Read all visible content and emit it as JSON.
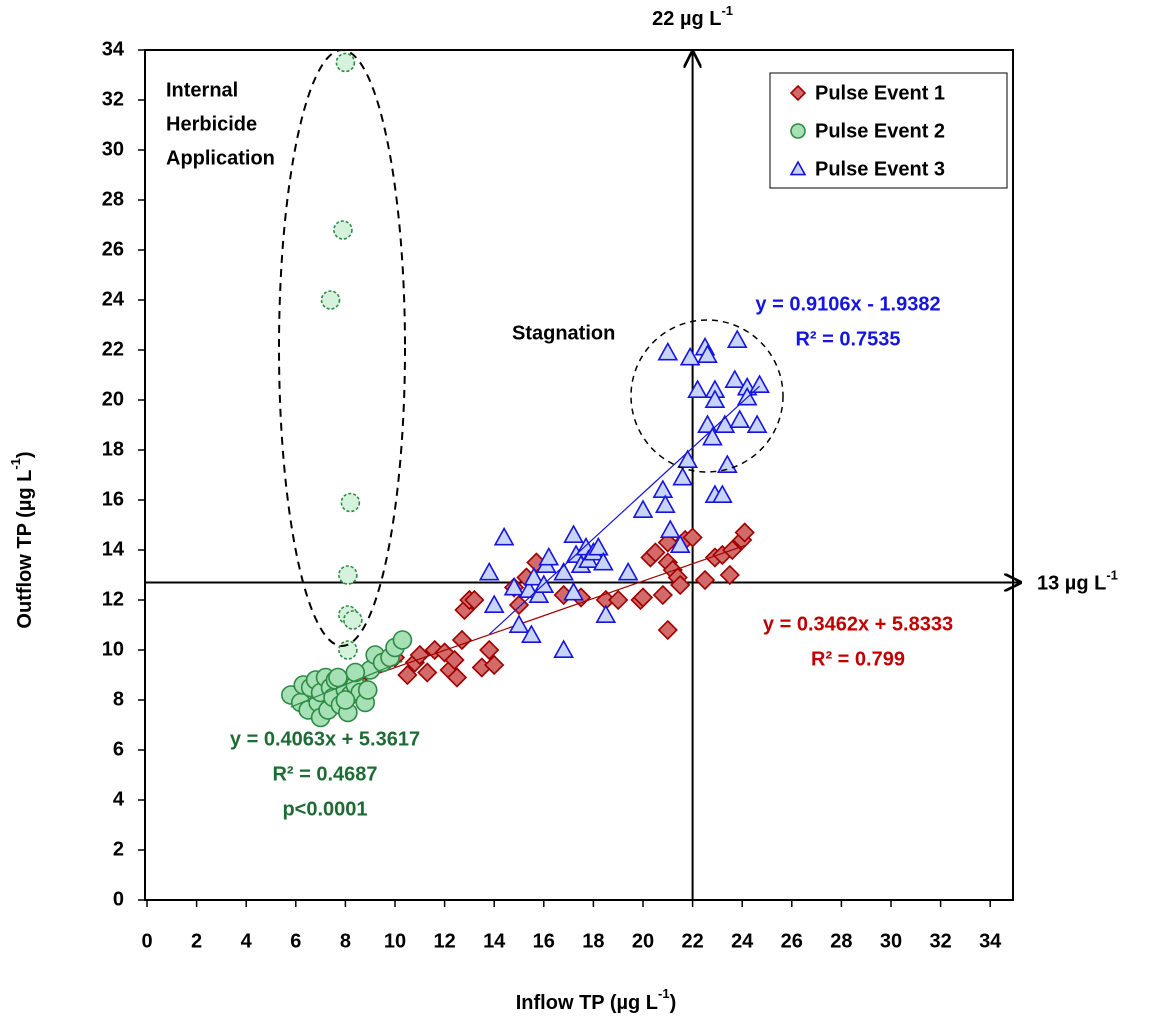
{
  "chart_data": {
    "type": "scatter",
    "xlabel": {
      "text": "Inflow TP (µg L",
      "sup": "-1",
      "end": ")"
    },
    "ylabel": {
      "text": "Outflow TP (µg L",
      "sup": "-1",
      "end": ")"
    },
    "xlim": [
      0,
      35
    ],
    "ylim": [
      0,
      34
    ],
    "xticks": [
      0,
      2,
      4,
      6,
      8,
      10,
      12,
      14,
      16,
      18,
      20,
      22,
      24,
      26,
      28,
      30,
      32,
      34
    ],
    "yticks": [
      0,
      2,
      4,
      6,
      8,
      10,
      12,
      14,
      16,
      18,
      20,
      22,
      24,
      26,
      28,
      30,
      32,
      34
    ],
    "legend": "upper right",
    "series": [
      {
        "name": "Pulse Event 1",
        "marker": "diamond",
        "color": "#d26a6a",
        "edge": "#a00000",
        "x": [
          8.5,
          9,
          9.5,
          10,
          10.5,
          10.8,
          11,
          11.3,
          11.6,
          12,
          12.2,
          12.4,
          12.5,
          12.7,
          12.8,
          13,
          13.2,
          13.5,
          13.8,
          14,
          14.8,
          15,
          15.3,
          15.7,
          16.8,
          17.5,
          18.5,
          19,
          19.9,
          20,
          20.3,
          20.5,
          20.8,
          21,
          21,
          21.2,
          21.4,
          21.5,
          21.7,
          22,
          22.5,
          22.9,
          23.2,
          23.5,
          23.6,
          24,
          24.1,
          21
        ],
        "values": [
          8.8,
          9.3,
          9.6,
          9.7,
          9.0,
          9.5,
          9.8,
          9.1,
          10.0,
          9.9,
          9.2,
          9.6,
          8.9,
          10.4,
          11.6,
          12,
          12,
          9.3,
          10,
          9.4,
          12.5,
          11.8,
          12.9,
          13.5,
          12.2,
          12.1,
          12,
          12,
          12,
          12.1,
          13.7,
          13.9,
          12.2,
          10.8,
          13.5,
          13.2,
          12.9,
          12.6,
          14.4,
          14.5,
          12.8,
          13.7,
          13.8,
          13,
          14,
          14.4,
          14.7,
          14.3
        ],
        "trend": {
          "slope": 0.3462,
          "intercept": 5.8333,
          "equation": "y = 0.3462x + 5.8333",
          "r2": "R² = 0.799"
        }
      },
      {
        "name": "Pulse Event 2",
        "marker": "circle",
        "color": "#a6e0b5",
        "edge": "#2e8b45",
        "x": [
          5.8,
          6.2,
          6.3,
          6.5,
          6.6,
          6.8,
          6.9,
          7,
          7,
          7.2,
          7.3,
          7.4,
          7.5,
          7.6,
          7.8,
          8,
          8.1,
          8.2,
          8.4,
          8.6,
          8.8,
          8.9,
          9,
          9.2,
          9.5,
          9.8,
          10,
          10.3,
          8.4,
          7.7,
          8.0
        ],
        "values": [
          8.2,
          7.9,
          8.6,
          7.6,
          8.5,
          8.8,
          7.9,
          7.3,
          8.3,
          8.9,
          7.6,
          8.5,
          8.1,
          8.8,
          7.8,
          8.4,
          7.5,
          8.2,
          8.6,
          8.3,
          7.9,
          8.4,
          9.2,
          9.8,
          9.5,
          9.7,
          10.1,
          10.4,
          9.1,
          8.9,
          8.0
        ],
        "trend": {
          "slope": 0.4063,
          "intercept": 5.3617,
          "equation": "y = 0.4063x + 5.3617",
          "r2": "R² = 0.4687",
          "p": "p<0.0001"
        }
      },
      {
        "name": "Pulse Event 3",
        "marker": "triangle",
        "color": "#c8d4f8",
        "edge": "#1515e0",
        "x": [
          13.8,
          14,
          14.4,
          14.8,
          15,
          15.4,
          15.5,
          15.6,
          15.8,
          16,
          16.1,
          16.2,
          16.8,
          16.8,
          17.2,
          17.2,
          17.3,
          17.5,
          17.7,
          17.8,
          18,
          18.2,
          18.4,
          18.5,
          19.4,
          20,
          20.8,
          20.9,
          21.1,
          21.5,
          21.6,
          21.8,
          21.9,
          21,
          22.2,
          22.5,
          22.6,
          22.6,
          22.8,
          22.9,
          22.9,
          22.9,
          23.2,
          23.3,
          23.4,
          23.7,
          23.8,
          23.9,
          24.2,
          24.2,
          24.6,
          24.7
        ],
        "values": [
          13.1,
          11.8,
          14.5,
          12.5,
          11,
          12.4,
          10.6,
          12.9,
          12.2,
          12.6,
          13.4,
          13.7,
          13.1,
          10,
          12.3,
          14.6,
          13.8,
          13.4,
          14.1,
          13.6,
          13.9,
          14.1,
          13.5,
          11.4,
          13.1,
          15.6,
          16.4,
          15.8,
          14.8,
          14.2,
          16.9,
          17.6,
          21.7,
          21.9,
          20.4,
          22.1,
          21.8,
          19,
          18.5,
          20.4,
          20,
          16.2,
          16.2,
          19,
          17.4,
          20.8,
          22.4,
          19.2,
          20.5,
          20.1,
          19,
          20.6
        ],
        "trend": {
          "slope": 0.9106,
          "intercept": -1.9382,
          "equation": "y = 0.9106x - 1.9382",
          "r2": "R² = 0.7535"
        }
      },
      {
        "marker": "circle",
        "style": "dashed",
        "color": "#d4f2dc",
        "edge": "#2e8b45",
        "x": [
          8,
          7.9,
          7.4,
          8.2,
          8.1,
          8.1,
          8.3,
          8.1
        ],
        "values": [
          33.5,
          26.8,
          24,
          15.9,
          13,
          11.4,
          11.2,
          10
        ]
      }
    ],
    "reference_lines": [
      {
        "axis": "x",
        "value": 22,
        "label": "22 µg L",
        "sup": "-1"
      },
      {
        "axis": "y",
        "value": 12.7,
        "label": "13 µg L",
        "sup": "-1"
      }
    ],
    "annotations": {
      "herbicide": [
        "Internal",
        "Herbicide",
        "Application"
      ],
      "stagnation": "Stagnation"
    }
  }
}
